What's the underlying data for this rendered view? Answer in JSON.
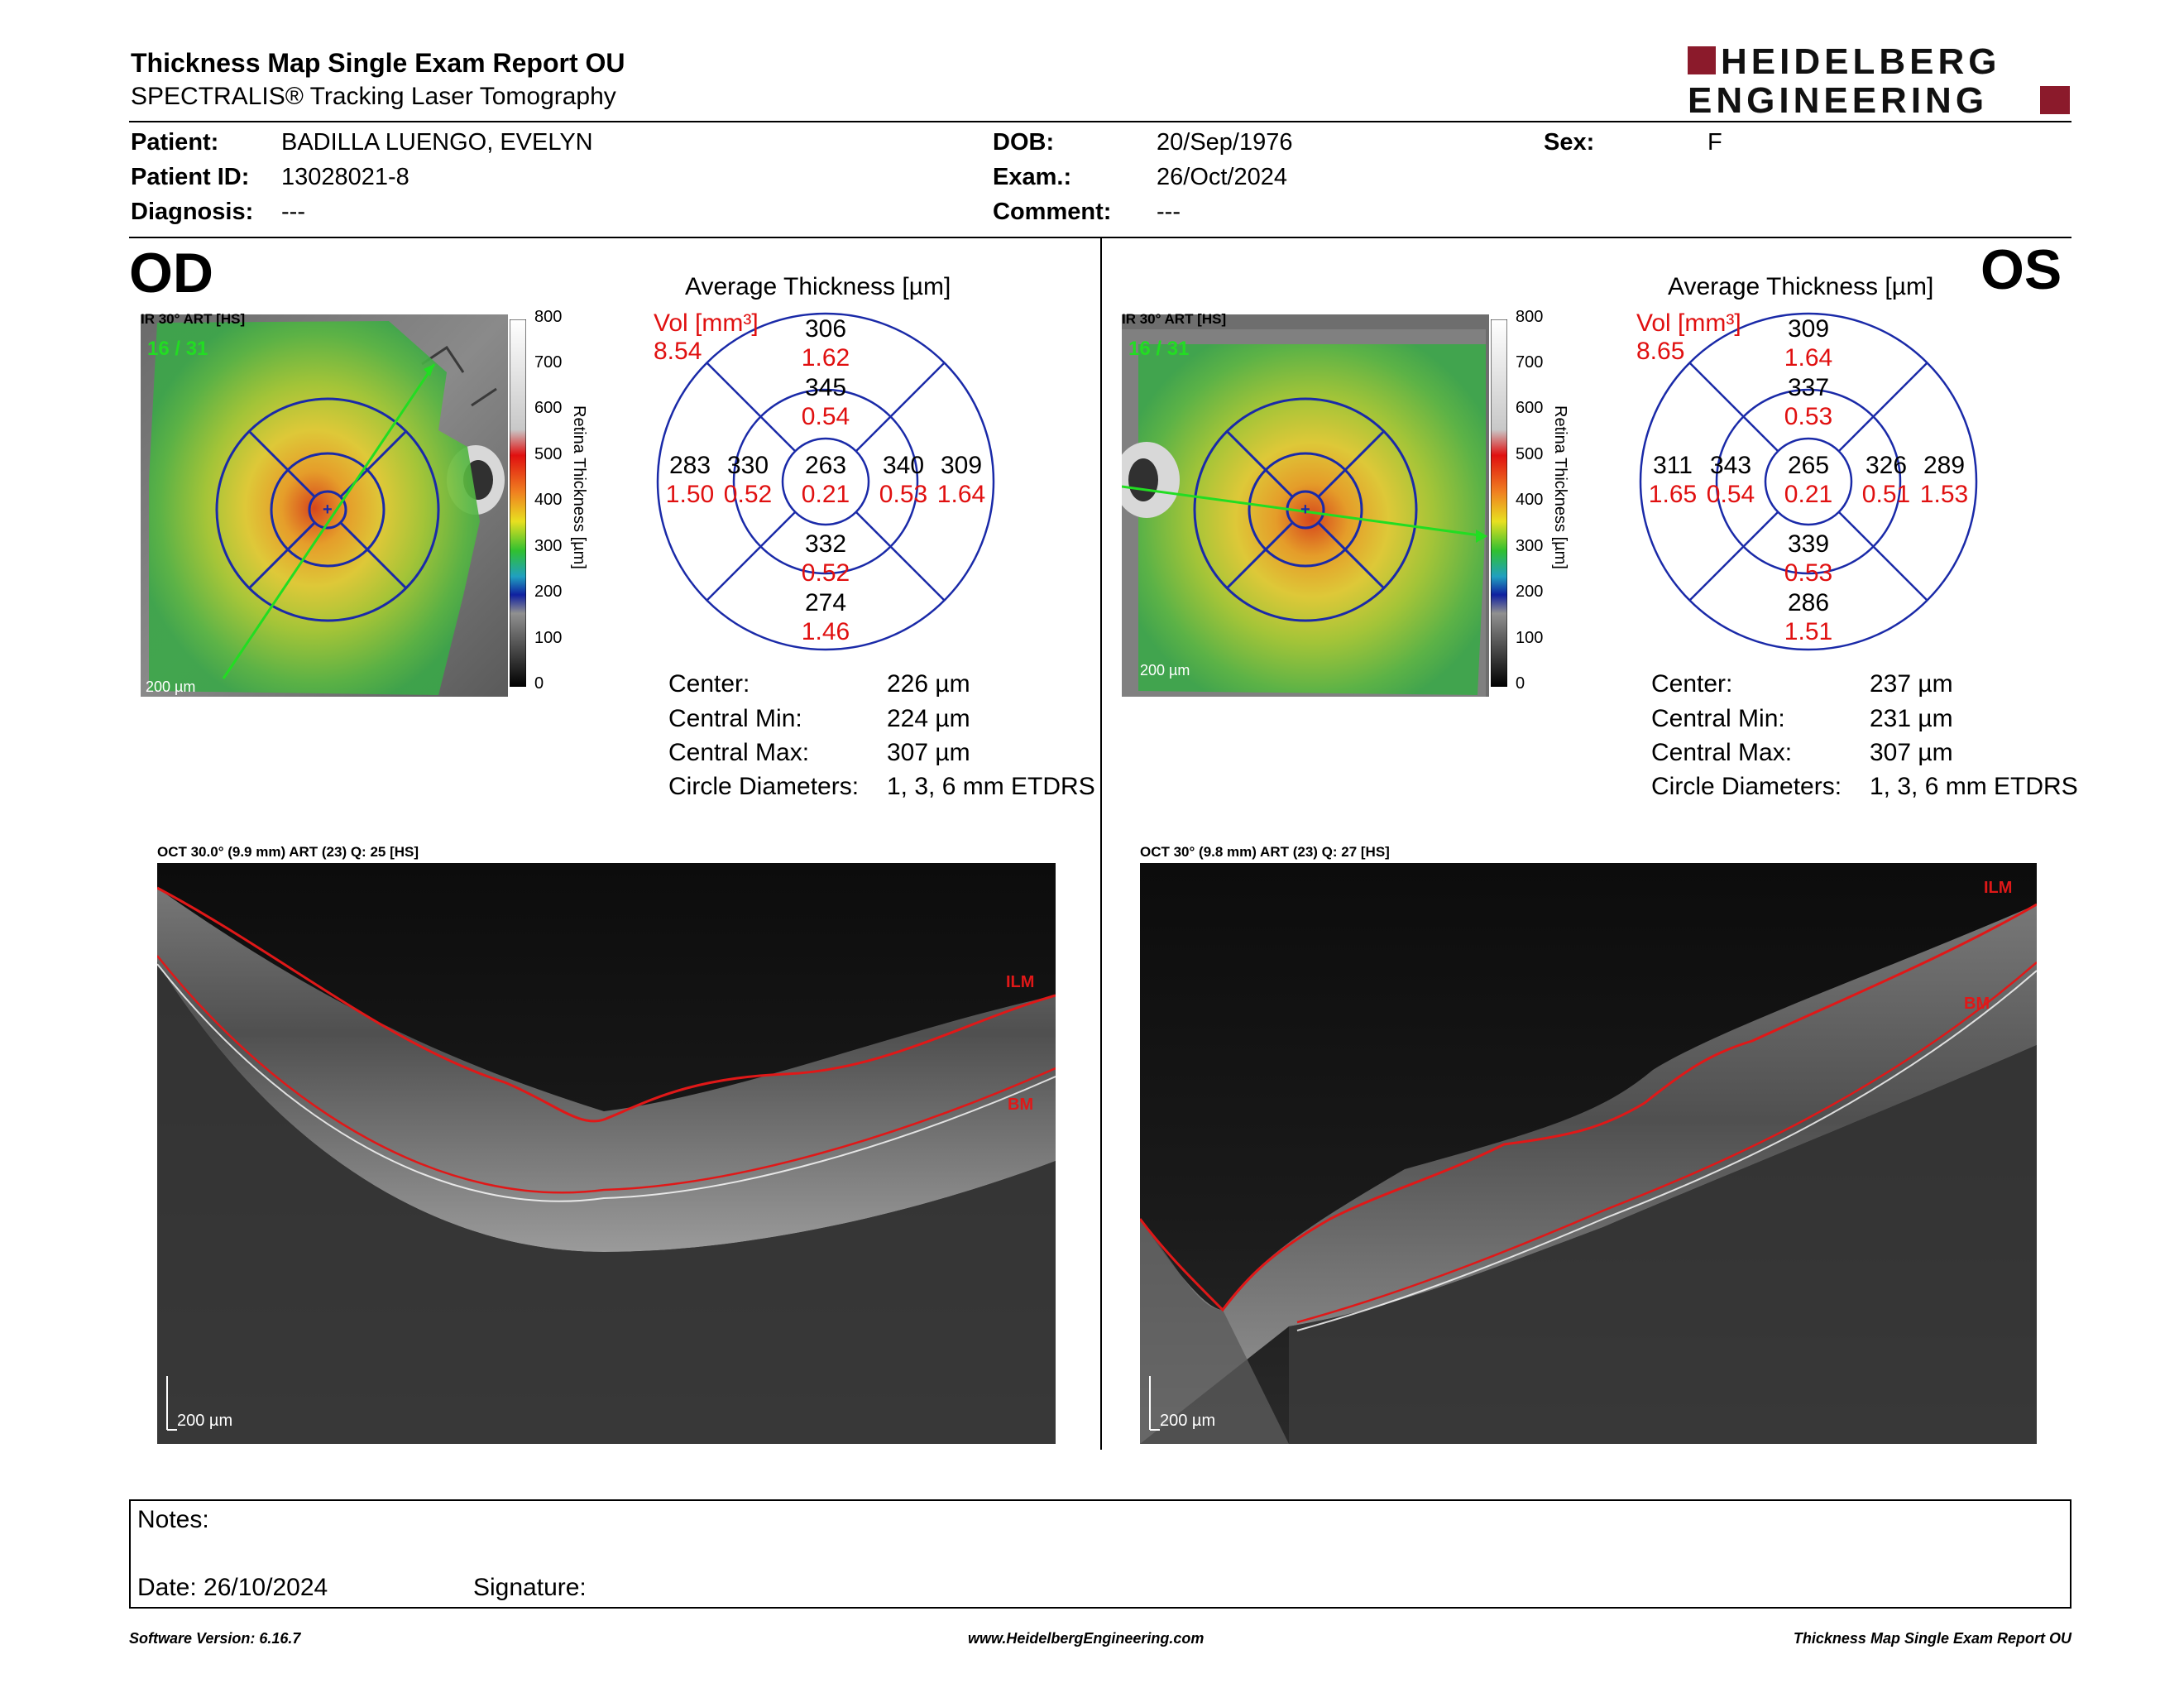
{
  "header": {
    "title": "Thickness Map Single Exam Report OU",
    "subtitle": "SPECTRALIS® Tracking Laser Tomography",
    "brand_line1": "HEIDELBERG",
    "brand_line2": "ENGINEERING",
    "brand_color": "#8b1a2b"
  },
  "patient": {
    "patient_label": "Patient:",
    "patient_value": "BADILLA LUENGO, EVELYN",
    "id_label": "Patient ID:",
    "id_value": "13028021-8",
    "diagnosis_label": "Diagnosis:",
    "diagnosis_value": "---",
    "dob_label": "DOB:",
    "dob_value": "20/Sep/1976",
    "exam_label": "Exam.:",
    "exam_value": "26/Oct/2024",
    "comment_label": "Comment:",
    "comment_value": "---",
    "sex_label": "Sex:",
    "sex_value": "F"
  },
  "colorbar": {
    "ticks": [
      "800",
      "700",
      "600",
      "500",
      "400",
      "300",
      "200",
      "100",
      "0"
    ],
    "title": "Retina Thickness [µm]"
  },
  "od": {
    "eye": "OD",
    "ir_label": "IR 30° ART [HS]",
    "frame": "16 / 31",
    "scale": "200 µm",
    "avg_title": "Average Thickness [µm]",
    "vol_label": "Vol [mm³]",
    "vol_total": "8.54",
    "grid": {
      "center_t": "263",
      "center_v": "0.21",
      "inner_sup_t": "345",
      "inner_sup_v": "0.54",
      "inner_inf_t": "332",
      "inner_inf_v": "0.52",
      "inner_left_t": "330",
      "inner_left_v": "0.52",
      "inner_right_t": "340",
      "inner_right_v": "0.53",
      "outer_sup_t": "306",
      "outer_sup_v": "1.62",
      "outer_inf_t": "274",
      "outer_inf_v": "1.46",
      "outer_left_t": "283",
      "outer_left_v": "1.50",
      "outer_right_t": "309",
      "outer_right_v": "1.64"
    },
    "stats": {
      "center_label": "Center:",
      "center_value": "226 µm",
      "min_label": "Central Min:",
      "min_value": "224 µm",
      "max_label": "Central Max:",
      "max_value": "307 µm",
      "diam_label": "Circle Diameters:",
      "diam_value": "1, 3, 6 mm ETDRS"
    },
    "oct_label": "OCT 30.0° (9.9 mm) ART (23) Q: 25 [HS]",
    "ilm": "ILM",
    "bm": "BM",
    "oct_scale": "200 µm"
  },
  "os": {
    "eye": "OS",
    "ir_label": "IR 30° ART [HS]",
    "frame": "16 / 31",
    "scale": "200 µm",
    "avg_title": "Average Thickness [µm]",
    "vol_label": "Vol [mm³]",
    "vol_total": "8.65",
    "grid": {
      "center_t": "265",
      "center_v": "0.21",
      "inner_sup_t": "337",
      "inner_sup_v": "0.53",
      "inner_inf_t": "339",
      "inner_inf_v": "0.53",
      "inner_left_t": "343",
      "inner_left_v": "0.54",
      "inner_right_t": "326",
      "inner_right_v": "0.51",
      "outer_sup_t": "309",
      "outer_sup_v": "1.64",
      "outer_inf_t": "286",
      "outer_inf_v": "1.51",
      "outer_left_t": "311",
      "outer_left_v": "1.65",
      "outer_right_t": "289",
      "outer_right_v": "1.53"
    },
    "stats": {
      "center_label": "Center:",
      "center_value": "237 µm",
      "min_label": "Central Min:",
      "min_value": "231 µm",
      "max_label": "Central Max:",
      "max_value": "307 µm",
      "diam_label": "Circle Diameters:",
      "diam_value": "1, 3, 6 mm ETDRS"
    },
    "oct_label": "OCT 30° (9.8 mm) ART (23) Q: 27 [HS]",
    "ilm": "ILM",
    "bm": "BM",
    "oct_scale": "200 µm"
  },
  "notes": {
    "notes_label": "Notes:",
    "date_label": "Date: 26/10/2024",
    "signature_label": "Signature:"
  },
  "footer": {
    "software": "Software Version: 6.16.7",
    "website": "www.HeidelbergEngineering.com",
    "report": "Thickness Map Single Exam Report OU"
  },
  "colors": {
    "grid_blue": "#1a2aa8",
    "volume_red": "#e01010",
    "frame_green": "#22dd22",
    "segmentation_red": "#e01818"
  }
}
